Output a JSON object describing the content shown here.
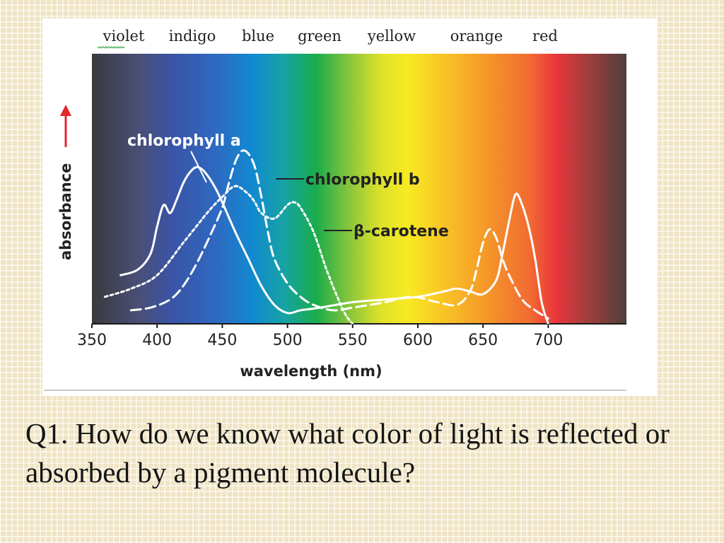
{
  "chart_data": {
    "type": "line",
    "spectrum_colors": [
      "violet",
      "indigo",
      "blue",
      "green",
      "yellow",
      "orange",
      "red"
    ],
    "ylabel": "absorbance",
    "xlabel": "wavelength (nm)",
    "xlim": [
      350,
      760
    ],
    "x_ticks": [
      350,
      400,
      450,
      500,
      550,
      600,
      650,
      700
    ],
    "ylim": [
      0,
      1
    ],
    "series": [
      {
        "name": "chlorophyll a",
        "style": "solid",
        "color": "#ffffff",
        "x": [
          372,
          385,
          395,
          400,
          405,
          410,
          415,
          420,
          425,
          430,
          435,
          440,
          445,
          450,
          460,
          470,
          480,
          490,
          500,
          510,
          525,
          550,
          575,
          600,
          620,
          630,
          640,
          650,
          660,
          665,
          670,
          675,
          680,
          685,
          690,
          695,
          700
        ],
        "y": [
          0.18,
          0.2,
          0.26,
          0.36,
          0.44,
          0.41,
          0.46,
          0.52,
          0.56,
          0.58,
          0.57,
          0.54,
          0.5,
          0.45,
          0.34,
          0.24,
          0.14,
          0.07,
          0.04,
          0.05,
          0.06,
          0.08,
          0.09,
          0.1,
          0.12,
          0.13,
          0.12,
          0.11,
          0.16,
          0.26,
          0.38,
          0.48,
          0.44,
          0.36,
          0.24,
          0.08,
          0.0
        ]
      },
      {
        "name": "chlorophyll b",
        "style": "dashed",
        "color": "#ffffff",
        "x": [
          380,
          395,
          410,
          420,
          430,
          440,
          450,
          455,
          460,
          465,
          470,
          475,
          480,
          485,
          490,
          500,
          510,
          520,
          535,
          550,
          575,
          595,
          615,
          630,
          640,
          645,
          650,
          655,
          660,
          665,
          670,
          680,
          690,
          700
        ],
        "y": [
          0.05,
          0.06,
          0.09,
          0.14,
          0.22,
          0.32,
          0.43,
          0.52,
          0.6,
          0.64,
          0.63,
          0.58,
          0.47,
          0.34,
          0.24,
          0.15,
          0.1,
          0.07,
          0.05,
          0.06,
          0.08,
          0.1,
          0.08,
          0.07,
          0.12,
          0.2,
          0.3,
          0.35,
          0.32,
          0.24,
          0.18,
          0.09,
          0.05,
          0.02
        ]
      },
      {
        "name": "β-carotene",
        "style": "dotted",
        "color": "#ffffff",
        "x": [
          360,
          380,
          400,
          420,
          430,
          440,
          450,
          460,
          470,
          475,
          480,
          490,
          500,
          505,
          510,
          520,
          530,
          540,
          545,
          550
        ],
        "y": [
          0.1,
          0.13,
          0.18,
          0.3,
          0.36,
          0.42,
          0.47,
          0.51,
          0.48,
          0.45,
          0.41,
          0.39,
          0.44,
          0.45,
          0.43,
          0.34,
          0.2,
          0.08,
          0.03,
          0.0
        ]
      }
    ]
  },
  "question": {
    "text": "Q1. How do we know what color of light is reflected or absorbed by a pigment molecule?"
  },
  "colors": {
    "slide_background": "#efe4c4",
    "figure_card": "#ffffff",
    "curve": "#ffffff",
    "axis_arrow": "#e2262a",
    "text": "#222222"
  }
}
